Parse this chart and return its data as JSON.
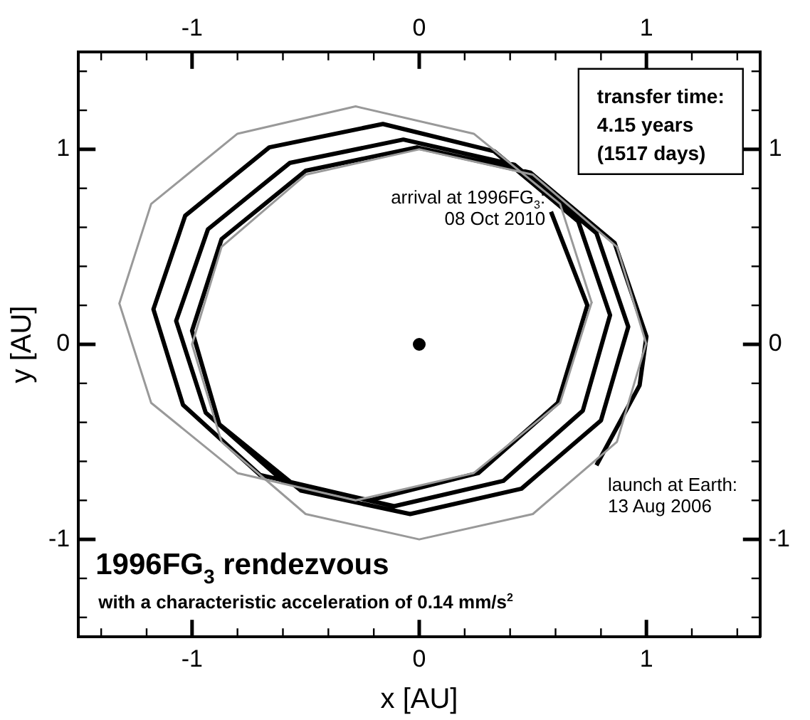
{
  "chart_data": {
    "type": "line",
    "title": "1996FG$_{3}$ rendezvous",
    "subtitle": "with a characteristic acceleration of 0.14 mm/s$^{2}$",
    "xlabel": "x [AU]",
    "ylabel": "y [AU]",
    "xlim": [
      -1.5,
      1.5
    ],
    "ylim": [
      -1.5,
      1.5
    ],
    "x2lim": [
      -1.5,
      1.5
    ],
    "y2lim": [
      -1.5,
      1.5
    ],
    "xticks": [
      {
        "value": -1.4,
        "label": null
      },
      {
        "value": -1.2,
        "label": null
      },
      -1,
      {
        "value": -0.8,
        "label": null
      },
      {
        "value": -0.6,
        "label": null
      },
      {
        "value": -0.4,
        "label": null
      },
      {
        "value": -0.2,
        "label": null
      },
      0,
      {
        "value": 0.2,
        "label": null
      },
      {
        "value": 0.4,
        "label": null
      },
      {
        "value": 0.6,
        "label": null
      },
      {
        "value": 0.8,
        "label": null
      },
      1,
      {
        "value": 1.2,
        "label": null
      },
      {
        "value": 1.4,
        "label": null
      }
    ],
    "x2ticks": [
      {
        "value": -1.4,
        "label": null
      },
      {
        "value": -1.2,
        "label": null
      },
      -1,
      {
        "value": -0.8,
        "label": null
      },
      {
        "value": -0.6,
        "label": null
      },
      {
        "value": -0.4,
        "label": null
      },
      {
        "value": -0.2,
        "label": null
      },
      0,
      {
        "value": 0.2,
        "label": null
      },
      {
        "value": 0.4,
        "label": null
      },
      {
        "value": 0.6,
        "label": null
      },
      {
        "value": 0.8,
        "label": null
      },
      1,
      {
        "value": 1.2,
        "label": null
      },
      {
        "value": 1.4,
        "label": null
      }
    ],
    "yticks": [
      {
        "value": -1.4,
        "label": null
      },
      {
        "value": -1.2,
        "label": null
      },
      -1,
      {
        "value": -0.8,
        "label": null
      },
      {
        "value": -0.6,
        "label": null
      },
      {
        "value": -0.4,
        "label": null
      },
      {
        "value": -0.2,
        "label": null
      },
      0,
      {
        "value": 0.2,
        "label": null
      },
      {
        "value": 0.4,
        "label": null
      },
      {
        "value": 0.6,
        "label": null
      },
      {
        "value": 0.8,
        "label": null
      },
      1,
      {
        "value": 1.2,
        "label": null
      },
      {
        "value": 1.4,
        "label": null
      }
    ],
    "y2ticks": [
      {
        "value": -1.4,
        "label": null
      },
      {
        "value": -1.2,
        "label": null
      },
      -1,
      {
        "value": -0.8,
        "label": null
      },
      {
        "value": -0.6,
        "label": null
      },
      {
        "value": -0.4,
        "label": null
      },
      {
        "value": -0.2,
        "label": null
      },
      0,
      {
        "value": 0.2,
        "label": null
      },
      {
        "value": 0.4,
        "label": null
      },
      {
        "value": 0.6,
        "label": null
      },
      {
        "value": 0.8,
        "label": null
      },
      1,
      {
        "value": 1.2,
        "label": null
      },
      {
        "value": 1.4,
        "label": null
      }
    ],
    "grid": false,
    "legend": false,
    "line_style": "solid",
    "series": [
      {
        "color": "#999999",
        "marker": "none",
        "x": [
          1,
          0.87,
          0.5,
          0,
          -0.5,
          -0.87,
          -1,
          -0.87,
          -0.5,
          0,
          0.5,
          0.87,
          1
        ],
        "values": [
          0,
          0.5,
          0.87,
          1,
          0.87,
          0.5,
          0,
          -0.5,
          -0.87,
          -1,
          -0.87,
          -0.5,
          0.01
        ]
      },
      {
        "color": "#999999",
        "marker": "none",
        "x": [
          0.76,
          0.62,
          0.24,
          -0.28,
          -0.8,
          -1.18,
          -1.32,
          -1.18,
          -0.8,
          -0.28,
          0.24,
          0.62,
          0.76
        ],
        "values": [
          0.21,
          0.72,
          1.08,
          1.22,
          1.08,
          0.72,
          0.21,
          -0.3,
          -0.66,
          -0.8,
          -0.66,
          -0.3,
          0.22
        ]
      },
      {
        "color": "#000000",
        "marker": "none",
        "x": [
          0.78,
          0.97,
          1.0,
          0.86,
          0.49,
          -0.01,
          -0.5,
          -0.87,
          -1.0,
          -0.88,
          -0.52,
          -0.04,
          0.45,
          0.8,
          0.92,
          0.78,
          0.42,
          -0.07,
          -0.57,
          -0.93,
          -1.07,
          -0.94,
          -0.6,
          -0.11,
          0.37,
          0.72,
          0.84,
          0.7,
          0.33,
          -0.16,
          -0.66,
          -1.03,
          -1.17,
          -1.04,
          -0.7,
          -0.22,
          0.26,
          0.61,
          0.74,
          0.58
        ],
        "values": [
          -0.62,
          -0.21,
          0.04,
          0.52,
          0.88,
          1.01,
          0.89,
          0.54,
          0.07,
          -0.41,
          -0.75,
          -0.87,
          -0.74,
          -0.39,
          0.09,
          0.57,
          0.92,
          1.05,
          0.93,
          0.59,
          0.12,
          -0.35,
          -0.7,
          -0.83,
          -0.7,
          -0.34,
          0.15,
          0.63,
          0.99,
          1.13,
          1.01,
          0.66,
          0.18,
          -0.31,
          -0.67,
          -0.8,
          -0.66,
          -0.3,
          0.2,
          0.68
        ]
      },
      {
        "type": "scatter",
        "color": "#000000",
        "marker": "circle",
        "x": [
          0
        ],
        "values": [
          0
        ]
      }
    ],
    "annotations": [
      "transfer time:\n4.15 years\n(1517 days)",
      {
        "text": "arrival at 1996FG$_{3}$:\n08 Oct 2010",
        "x": 0.58,
        "y": 0.68
      },
      {
        "text": "launch at Earth:\n13 Aug 2006",
        "x": 0.78,
        "y": -0.62
      }
    ]
  }
}
